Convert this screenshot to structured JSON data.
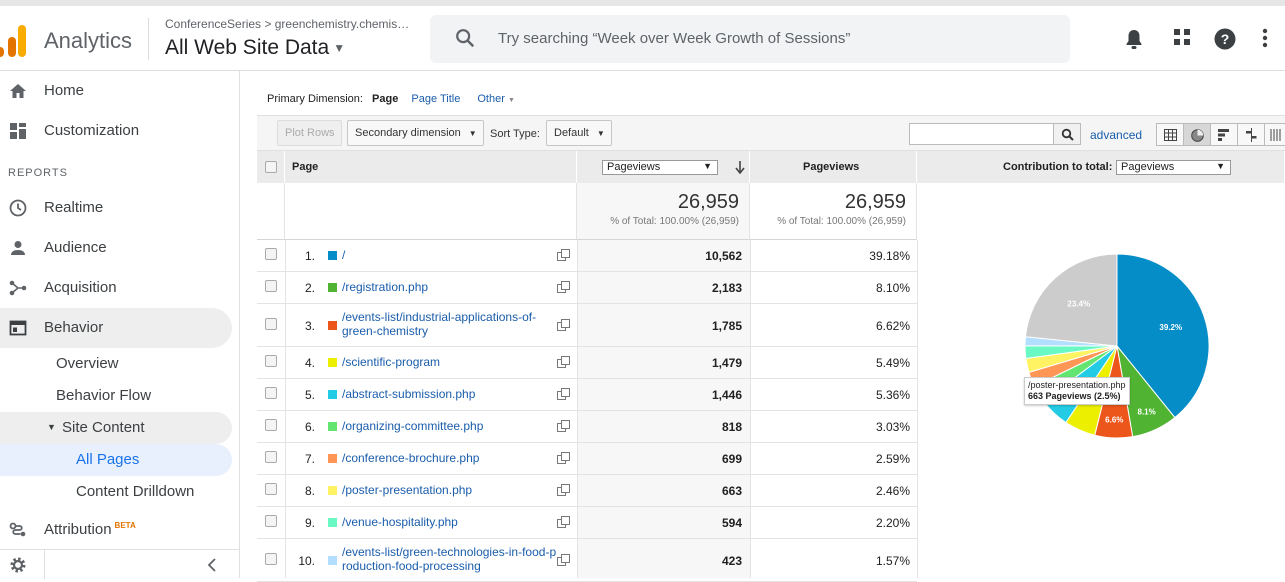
{
  "header": {
    "brand": "Analytics",
    "breadcrumb": "ConferenceSeries > greenchemistry.chemis…",
    "property": "All Web Site Data",
    "search_placeholder": "Try searching “Week over Week Growth of Sessions”"
  },
  "sidebar": {
    "home": "Home",
    "customization": "Customization",
    "reports_header": "REPORTS",
    "realtime": "Realtime",
    "audience": "Audience",
    "acquisition": "Acquisition",
    "behavior": "Behavior",
    "overview": "Overview",
    "behavior_flow": "Behavior Flow",
    "site_content": "Site Content",
    "all_pages": "All Pages",
    "content_drilldown": "Content Drilldown",
    "attribution": "Attribution",
    "beta": "BETA"
  },
  "dimension": {
    "label": "Primary Dimension:",
    "selected": "Page",
    "page_title": "Page Title",
    "other": "Other"
  },
  "toolbar": {
    "plot_rows": "Plot Rows",
    "secondary_dimension": "Secondary dimension",
    "sort_type_label": "Sort Type:",
    "sort_type_value": "Default",
    "advanced": "advanced"
  },
  "table": {
    "col_page": "Page",
    "col_metric_select": "Pageviews",
    "col_pageviews": "Pageviews",
    "col_contribution": "Contribution to total:",
    "contribution_select": "Pageviews",
    "total_1": "26,959",
    "total_1_sub": "% of Total: 100.00% (26,959)",
    "total_2": "26,959",
    "total_2_sub": "% of Total: 100.00% (26,959)",
    "rows": [
      {
        "n": "1.",
        "page": "/",
        "pv": "10,562",
        "pct": "39.18%",
        "color": "#058dc7"
      },
      {
        "n": "2.",
        "page": "/registration.php",
        "pv": "2,183",
        "pct": "8.10%",
        "color": "#50b432"
      },
      {
        "n": "3.",
        "page": "/events-list/industrial-applications-of-green-chemistry",
        "pv": "1,785",
        "pct": "6.62%",
        "color": "#ed561b"
      },
      {
        "n": "4.",
        "page": "/scientific-program",
        "pv": "1,479",
        "pct": "5.49%",
        "color": "#edef00"
      },
      {
        "n": "5.",
        "page": "/abstract-submission.php",
        "pv": "1,446",
        "pct": "5.36%",
        "color": "#24cbe5"
      },
      {
        "n": "6.",
        "page": "/organizing-committee.php",
        "pv": "818",
        "pct": "3.03%",
        "color": "#64e572"
      },
      {
        "n": "7.",
        "page": "/conference-brochure.php",
        "pv": "699",
        "pct": "2.59%",
        "color": "#ff9655"
      },
      {
        "n": "8.",
        "page": "/poster-presentation.php",
        "pv": "663",
        "pct": "2.46%",
        "color": "#fff263"
      },
      {
        "n": "9.",
        "page": "/venue-hospitality.php",
        "pv": "594",
        "pct": "2.20%",
        "color": "#6af9c4"
      },
      {
        "n": "10.",
        "page": "/events-list/green-technologies-in-food-production-food-processing",
        "pv": "423",
        "pct": "1.57%",
        "color": "#b2deff"
      }
    ]
  },
  "pie": {
    "label_top": "39.2%",
    "label_2": "8.1%",
    "label_3": "6.6%",
    "label_other": "23.4%",
    "tooltip_page": "/poster-presentation.php",
    "tooltip_value": "663 Pageviews (2.5%)",
    "other_color": "#cccccc"
  }
}
